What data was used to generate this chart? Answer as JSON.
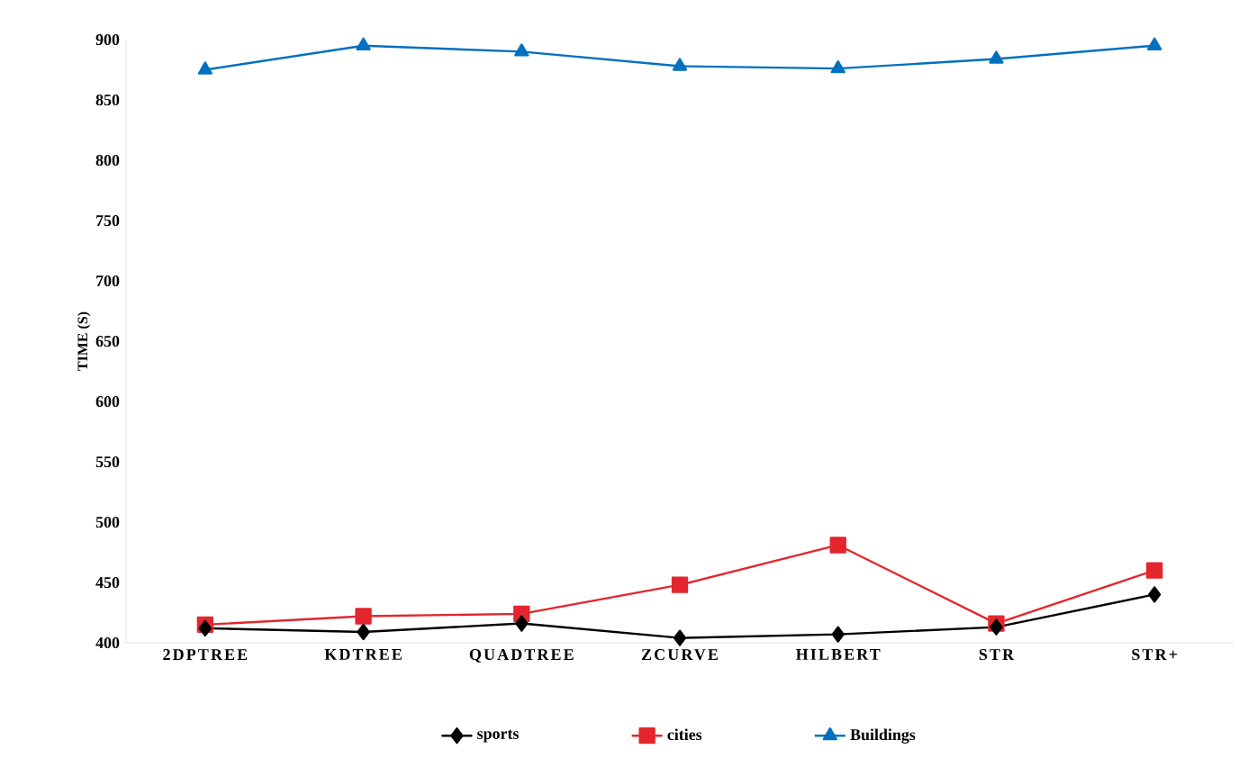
{
  "chart_data": {
    "type": "line",
    "ylabel": "TIME (S)",
    "categories": [
      "2DPTREE",
      "KDTREE",
      "QUADTREE",
      "ZCURVE",
      "HILBERT",
      "STR",
      "STR+"
    ],
    "series": [
      {
        "name": "sports",
        "color": "#000000",
        "marker": "diamond",
        "values": [
          412,
          409,
          416,
          404,
          407,
          413,
          440
        ]
      },
      {
        "name": "cities",
        "color": "#e3262e",
        "marker": "square",
        "values": [
          415,
          422,
          424,
          448,
          481,
          416,
          460
        ]
      },
      {
        "name": "Buildings",
        "color": "#0070c0",
        "marker": "triangle",
        "values": [
          875,
          895,
          890,
          878,
          876,
          884,
          895
        ]
      }
    ],
    "ylim": [
      400,
      900
    ],
    "yticks": [
      400,
      450,
      500,
      550,
      600,
      650,
      700,
      750,
      800,
      850,
      900
    ],
    "grid": false,
    "legend": "bottom",
    "line_style": "solid"
  }
}
